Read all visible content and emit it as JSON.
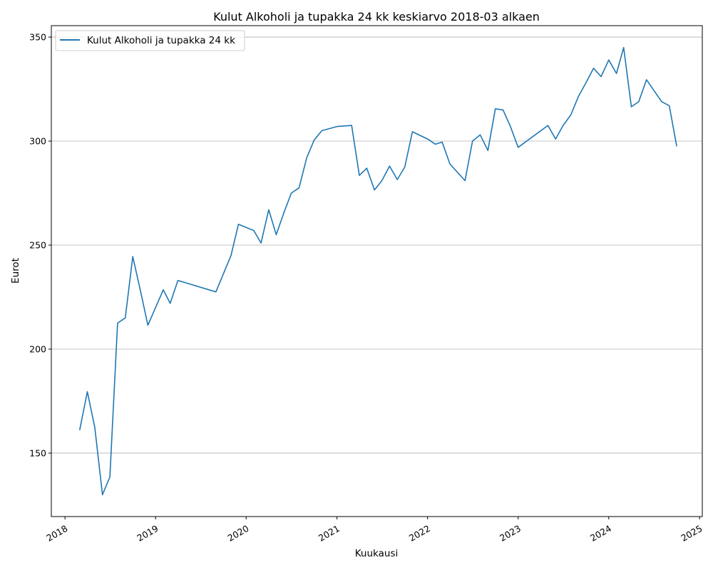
{
  "chart_data": {
    "type": "line",
    "title": "Kulut Alkoholi ja tupakka 24 kk keskiarvo 2018-03 alkaen",
    "xlabel": "Kuukausi",
    "ylabel": "Eurot",
    "xlim": [
      "2017-11-07",
      "2025-01-12"
    ],
    "ylim": [
      119.5,
      355.5
    ],
    "x_ticks": [
      "2018",
      "2019",
      "2020",
      "2021",
      "2022",
      "2023",
      "2024",
      "2025"
    ],
    "y_ticks": [
      150,
      200,
      250,
      300,
      350
    ],
    "grid": "horizontal",
    "legend": "upper-left",
    "line_color": "#1f77b4",
    "series": [
      {
        "name": "Kulut Alkoholi ja tupakka 24 kk",
        "points": [
          [
            "2018-03",
            161
          ],
          [
            "2018-04",
            179.5
          ],
          [
            "2018-05",
            162.5
          ],
          [
            "2018-06",
            130
          ],
          [
            "2018-07",
            138.5
          ],
          [
            "2018-08",
            212.5
          ],
          [
            "2018-09",
            215
          ],
          [
            "2018-10",
            244.5
          ],
          [
            "2018-11",
            228
          ],
          [
            "2018-12",
            211.5
          ],
          [
            "2019-02",
            228.5
          ],
          [
            "2019-03",
            222
          ],
          [
            "2019-04",
            233
          ],
          [
            "2019-09",
            227.5
          ],
          [
            "2019-11",
            245
          ],
          [
            "2019-12",
            260
          ],
          [
            "2020-02",
            257
          ],
          [
            "2020-03",
            251
          ],
          [
            "2020-04",
            267
          ],
          [
            "2020-05",
            255
          ],
          [
            "2020-06",
            265.5
          ],
          [
            "2020-07",
            275
          ],
          [
            "2020-08",
            277.5
          ],
          [
            "2020-09",
            292
          ],
          [
            "2020-10",
            300.5
          ],
          [
            "2020-11",
            305
          ],
          [
            "2021-01",
            307
          ],
          [
            "2021-03",
            307.5
          ],
          [
            "2021-04",
            283.5
          ],
          [
            "2021-05",
            287
          ],
          [
            "2021-06",
            276.5
          ],
          [
            "2021-07",
            281
          ],
          [
            "2021-08",
            288
          ],
          [
            "2021-09",
            281.5
          ],
          [
            "2021-10",
            287.5
          ],
          [
            "2021-11",
            304.5
          ],
          [
            "2022-01",
            301
          ],
          [
            "2022-02",
            298.5
          ],
          [
            "2022-03",
            299.5
          ],
          [
            "2022-04",
            289
          ],
          [
            "2022-06",
            281
          ],
          [
            "2022-07",
            300
          ],
          [
            "2022-08",
            303
          ],
          [
            "2022-09",
            295.5
          ],
          [
            "2022-10",
            315.5
          ],
          [
            "2022-11",
            315
          ],
          [
            "2022-12",
            307
          ],
          [
            "2023-01",
            297
          ],
          [
            "2023-05",
            307.5
          ],
          [
            "2023-06",
            301
          ],
          [
            "2023-07",
            307.5
          ],
          [
            "2023-08",
            312.5
          ],
          [
            "2023-09",
            321.5
          ],
          [
            "2023-10",
            328
          ],
          [
            "2023-11",
            335
          ],
          [
            "2023-12",
            331
          ],
          [
            "2024-01",
            339
          ],
          [
            "2024-02",
            332.5
          ],
          [
            "2024-03",
            345
          ],
          [
            "2024-04",
            316.5
          ],
          [
            "2024-05",
            319
          ],
          [
            "2024-06",
            329.5
          ],
          [
            "2024-08",
            319
          ],
          [
            "2024-09",
            317
          ],
          [
            "2024-10",
            297.5
          ]
        ]
      }
    ]
  }
}
